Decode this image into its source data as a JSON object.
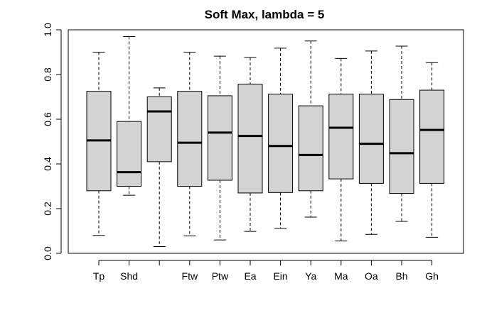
{
  "chart_data": {
    "type": "box",
    "title": "Soft Max, lambda = 5",
    "xlabel": "",
    "ylabel": "",
    "ylim": [
      0.0,
      1.0
    ],
    "y_ticks": [
      "0.0",
      "0.2",
      "0.4",
      "0.6",
      "0.8",
      "1.0"
    ],
    "grid": false,
    "box_fill": "#d3d3d3",
    "categories": [
      "Tp",
      "Shd",
      "",
      "Ftw",
      "Ptw",
      "Ea",
      "Ein",
      "Ya",
      "Ma",
      "Oa",
      "Bh",
      "Gh"
    ],
    "boxes": [
      {
        "whisker_low": 0.08,
        "q1": 0.28,
        "median": 0.505,
        "q3": 0.725,
        "whisker_high": 0.9
      },
      {
        "whisker_low": 0.26,
        "q1": 0.3,
        "median": 0.363,
        "q3": 0.59,
        "whisker_high": 0.97
      },
      {
        "whisker_low": 0.03,
        "q1": 0.41,
        "median": 0.635,
        "q3": 0.7,
        "whisker_high": 0.74
      },
      {
        "whisker_low": 0.078,
        "q1": 0.3,
        "median": 0.495,
        "q3": 0.725,
        "whisker_high": 0.9
      },
      {
        "whisker_low": 0.06,
        "q1": 0.327,
        "median": 0.54,
        "q3": 0.705,
        "whisker_high": 0.882
      },
      {
        "whisker_low": 0.098,
        "q1": 0.27,
        "median": 0.525,
        "q3": 0.757,
        "whisker_high": 0.876
      },
      {
        "whisker_low": 0.112,
        "q1": 0.272,
        "median": 0.48,
        "q3": 0.712,
        "whisker_high": 0.918
      },
      {
        "whisker_low": 0.162,
        "q1": 0.28,
        "median": 0.44,
        "q3": 0.66,
        "whisker_high": 0.95
      },
      {
        "whisker_low": 0.055,
        "q1": 0.333,
        "median": 0.562,
        "q3": 0.712,
        "whisker_high": 0.872
      },
      {
        "whisker_low": 0.085,
        "q1": 0.313,
        "median": 0.49,
        "q3": 0.712,
        "whisker_high": 0.905
      },
      {
        "whisker_low": 0.143,
        "q1": 0.268,
        "median": 0.448,
        "q3": 0.688,
        "whisker_high": 0.927
      },
      {
        "whisker_low": 0.072,
        "q1": 0.313,
        "median": 0.552,
        "q3": 0.73,
        "whisker_high": 0.853
      }
    ]
  }
}
